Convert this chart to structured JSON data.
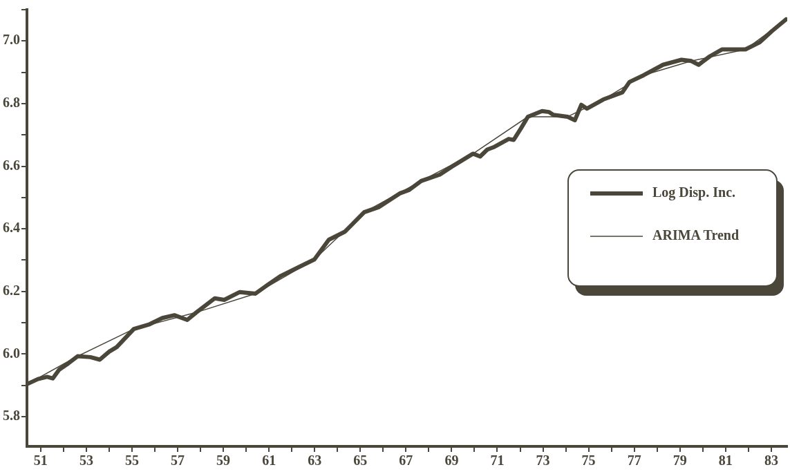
{
  "chart_data": {
    "type": "line",
    "x": [
      50.44,
      50.88,
      51.28,
      51.53,
      51.81,
      52.21,
      52.62,
      53.18,
      53.59,
      53.99,
      54.33,
      55.08,
      55.77,
      56.33,
      56.86,
      57.42,
      57.82,
      58.63,
      59.04,
      59.72,
      60.41,
      61.0,
      61.53,
      62.37,
      62.99,
      63.62,
      64.33,
      65.17,
      65.8,
      66.73,
      67.14,
      67.67,
      68.48,
      69.0,
      69.94,
      70.25,
      70.56,
      70.88,
      71.5,
      71.72,
      72.03,
      72.34,
      72.96,
      73.27,
      73.46,
      74.08,
      74.4,
      74.68,
      74.93,
      75.64,
      76.48,
      76.79,
      77.42,
      78.26,
      79.07,
      79.5,
      79.82,
      80.31,
      80.84,
      81.87,
      82.5,
      83.02,
      83.65
    ],
    "series": [
      {
        "name": "Log Disp. Inc.",
        "color": "#4a463a",
        "values": [
          5.905,
          5.92,
          5.927,
          5.922,
          5.95,
          5.97,
          5.993,
          5.99,
          5.982,
          6.007,
          6.022,
          6.08,
          6.095,
          6.115,
          6.124,
          6.109,
          6.133,
          6.178,
          6.173,
          6.198,
          6.193,
          6.224,
          6.25,
          6.28,
          6.302,
          6.365,
          6.391,
          6.453,
          6.469,
          6.513,
          6.524,
          6.553,
          6.573,
          6.598,
          6.64,
          6.631,
          6.653,
          6.662,
          6.687,
          6.684,
          6.72,
          6.758,
          6.776,
          6.773,
          6.764,
          6.758,
          6.747,
          6.796,
          6.784,
          6.813,
          6.836,
          6.869,
          6.891,
          6.924,
          6.94,
          6.936,
          6.924,
          6.951,
          6.973,
          6.973,
          6.996,
          7.031,
          7.069
        ]
      },
      {
        "name": "ARIMA Trend",
        "color": "#4a463a",
        "x": [
          50.44,
          52.62,
          55.08,
          57.82,
          60.41,
          62.99,
          65.17,
          67.67,
          69.94,
          72.34,
          74.08,
          75.64,
          77.42,
          79.5,
          81.87,
          83.65
        ],
        "values": [
          5.905,
          5.993,
          6.08,
          6.133,
          6.193,
          6.302,
          6.453,
          6.553,
          6.64,
          6.758,
          6.758,
          6.813,
          6.891,
          6.936,
          6.973,
          7.069
        ]
      }
    ],
    "xlim": [
      50.4,
      83.7
    ],
    "xticks": [
      51,
      {
        "value": 52,
        "label": null
      },
      53,
      {
        "value": 54,
        "label": null
      },
      55,
      {
        "value": 56,
        "label": null
      },
      57,
      {
        "value": 58,
        "label": null
      },
      59,
      {
        "value": 60,
        "label": null
      },
      61,
      {
        "value": 62,
        "label": null
      },
      63,
      {
        "value": 64,
        "label": null
      },
      65,
      {
        "value": 66,
        "label": null
      },
      67,
      {
        "value": 68,
        "label": null
      },
      69,
      {
        "value": 70,
        "label": null
      },
      71,
      {
        "value": 72,
        "label": null
      },
      73,
      {
        "value": 74,
        "label": null
      },
      75,
      {
        "value": 76,
        "label": null
      },
      77,
      {
        "value": 78,
        "label": null
      },
      79,
      {
        "value": 80,
        "label": null
      },
      81,
      {
        "value": 82,
        "label": null
      },
      83
    ],
    "ylim": [
      5.705,
      7.1
    ],
    "yticks": [
      5.8,
      {
        "value": 5.9,
        "label": null
      },
      {
        "value": 6,
        "label": "6.0"
      },
      {
        "value": 6.1,
        "label": null
      },
      6.2,
      {
        "value": 6.3,
        "label": null
      },
      6.4,
      {
        "value": 6.5,
        "label": null
      },
      6.6,
      {
        "value": 6.7,
        "label": null
      },
      6.8,
      {
        "value": 6.9,
        "label": null
      },
      {
        "value": 7,
        "label": "7.0"
      },
      {
        "value": 7.1,
        "label": null
      }
    ],
    "grid": false,
    "legend": "right",
    "marker": "none",
    "line_style": "solid"
  }
}
